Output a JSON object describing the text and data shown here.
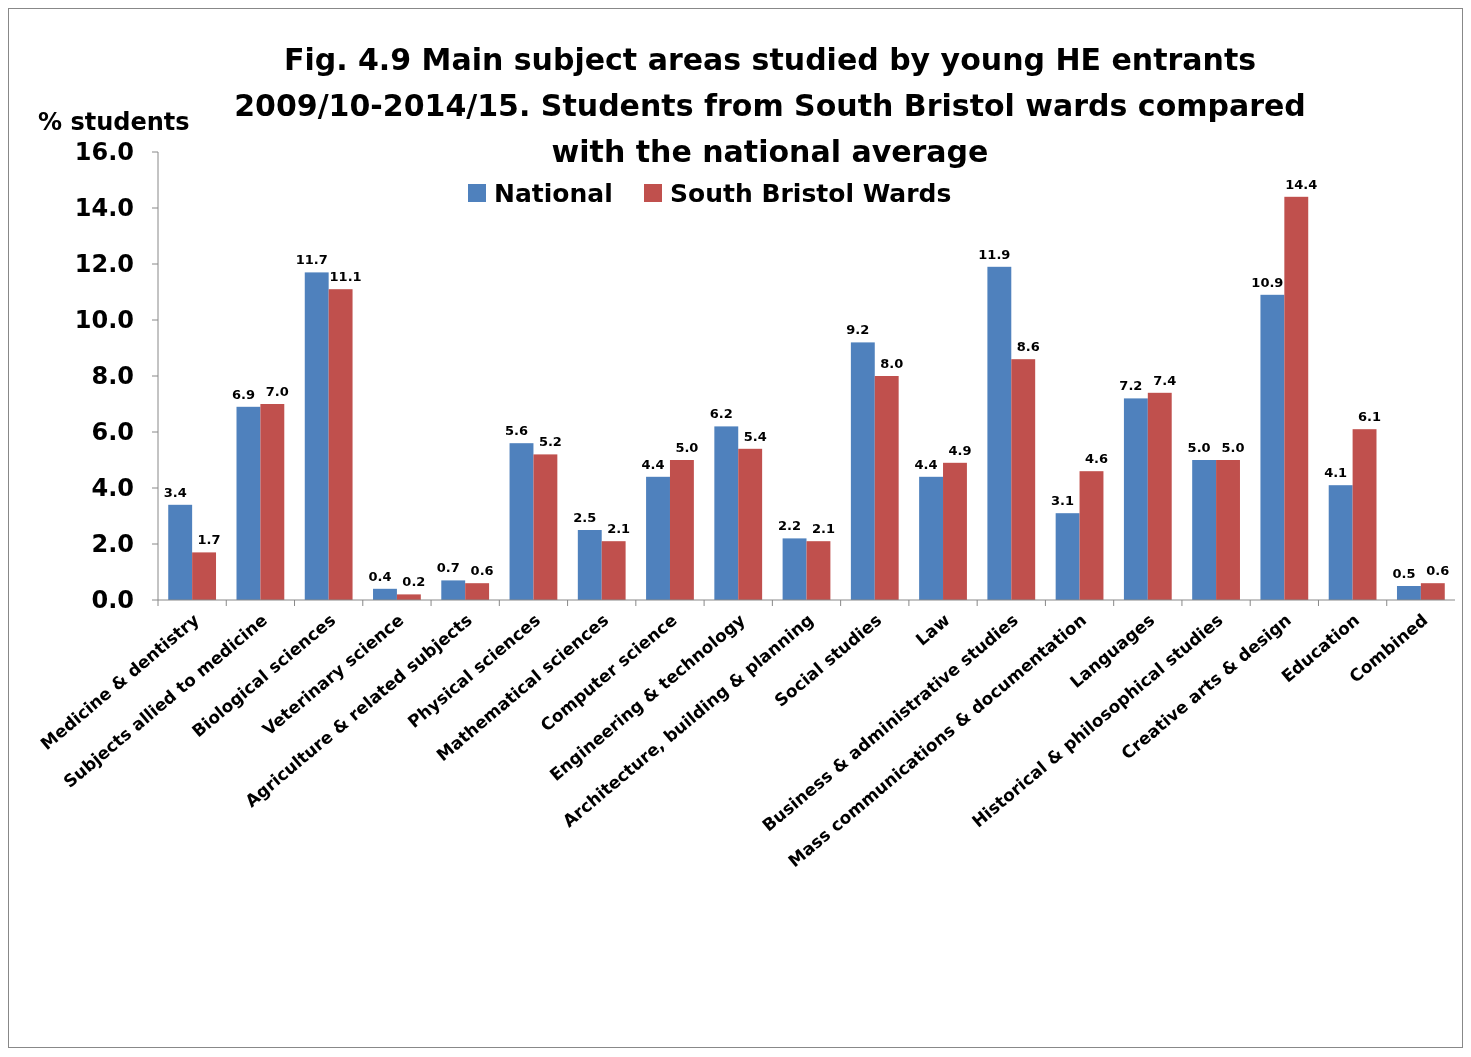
{
  "chart_data": {
    "type": "bar",
    "title": "Fig. 4.9 Main subject areas studied by young HE entrants 2009/10-2014/15. Students from South Bristol wards compared with the national average",
    "ylabel": "% students",
    "categories": [
      "Medicine & dentistry",
      "Subjects allied to medicine",
      "Biological sciences",
      "Veterinary science",
      "Agriculture & related subjects",
      "Physical sciences",
      "Mathematical sciences",
      "Computer science",
      "Engineering & technology",
      "Architecture, building & planning",
      "Social studies",
      "Law",
      "Business & administrative studies",
      "Mass communications & documentation",
      "Languages",
      "Historical & philosophical studies",
      "Creative arts & design",
      "Education",
      "Combined"
    ],
    "series": [
      {
        "name": "National",
        "color": "#4f81bd",
        "values": [
          3.4,
          6.9,
          11.7,
          0.4,
          0.7,
          5.6,
          2.5,
          4.4,
          6.2,
          2.2,
          9.2,
          4.4,
          11.9,
          3.1,
          7.2,
          5.0,
          10.9,
          4.1,
          0.5
        ],
        "value_labels": [
          "3.4",
          "6.9",
          "11.7",
          "0.4",
          "0.7",
          "5.6",
          "2.5",
          "4.4",
          "6.2",
          "2.2",
          "9.2",
          "4.4",
          "11.9",
          "3.1",
          "7.2",
          "5.0",
          "10.9",
          "4.1",
          "0.5"
        ]
      },
      {
        "name": "South Bristol Wards",
        "color": "#c0504d",
        "values": [
          1.7,
          7.0,
          11.1,
          0.2,
          0.6,
          5.2,
          2.1,
          5.0,
          5.4,
          2.1,
          8.0,
          4.9,
          8.6,
          4.6,
          7.4,
          5.0,
          14.4,
          6.1,
          0.6
        ],
        "value_labels": [
          "1.7",
          "7.0",
          "11.1",
          "0.2",
          "0.6",
          "5.2",
          "2.1",
          "5.0",
          "5.4",
          "2.1",
          "8.0",
          "4.9",
          "8.6",
          "4.6",
          "7.4",
          "5.0",
          "14.4",
          "6.1",
          "0.6"
        ]
      }
    ],
    "ylim": [
      0,
      16
    ],
    "yticks": [
      {
        "value": 0,
        "label": "0.0"
      },
      {
        "value": 2,
        "label": "2.0"
      },
      {
        "value": 4,
        "label": "4.0"
      },
      {
        "value": 6,
        "label": "6.0"
      },
      {
        "value": 8,
        "label": "8.0"
      },
      {
        "value": 10,
        "label": "10.0"
      },
      {
        "value": 12,
        "label": "12.0"
      },
      {
        "value": 14,
        "label": "14.0"
      },
      {
        "value": 16,
        "label": "16.0"
      }
    ],
    "grid": false,
    "legend": "top"
  }
}
